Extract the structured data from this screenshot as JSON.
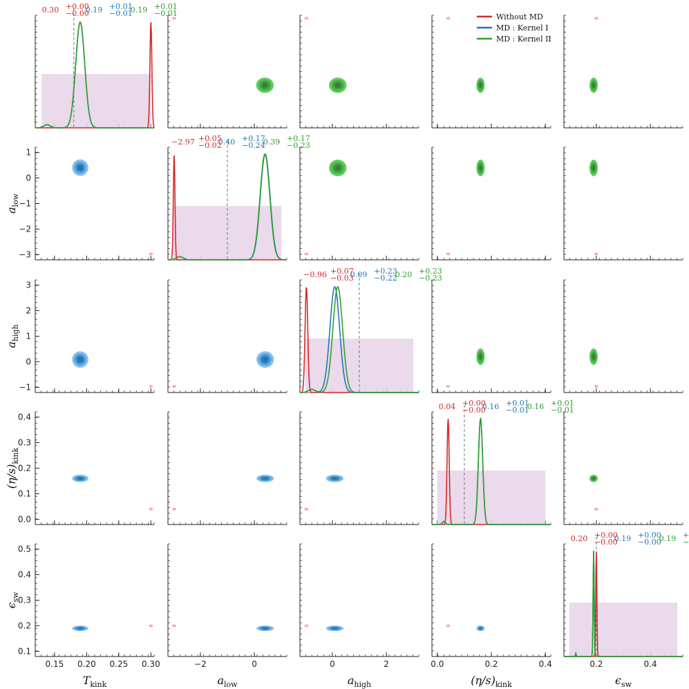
{
  "chart_data": {
    "type": "corner",
    "parameters": [
      {
        "key": "T_kink",
        "label_main": "T",
        "label_sub": "kink",
        "range": [
          0.12,
          0.305
        ],
        "ticks": [
          0.15,
          0.2,
          0.25,
          0.3
        ],
        "tick_labels": [
          "0.15",
          "0.20",
          "0.25",
          "0.30"
        ]
      },
      {
        "key": "a_low",
        "label_main": "a",
        "label_sub": "low",
        "range": [
          -3.2,
          1.2
        ],
        "ticks": [
          -2,
          0
        ],
        "tick_labels": [
          "−2",
          "0"
        ],
        "y_ticks": [
          1,
          0,
          -1,
          -2,
          -3
        ],
        "y_tick_labels": [
          "1",
          "0",
          "−1",
          "−2",
          "−3"
        ]
      },
      {
        "key": "a_high",
        "label_main": "a",
        "label_sub": "high",
        "range": [
          -1.2,
          3.2
        ],
        "ticks": [
          0,
          2
        ],
        "tick_labels": [
          "0",
          "2"
        ],
        "y_ticks": [
          3,
          2,
          1,
          0,
          -1
        ],
        "y_tick_labels": [
          "3",
          "2",
          "1",
          "0",
          "−1"
        ]
      },
      {
        "key": "eta_s_kink",
        "label_main": "(η/s)",
        "label_sub": "kink",
        "range": [
          -0.02,
          0.42
        ],
        "ticks": [
          0.0,
          0.2,
          0.4
        ],
        "tick_labels": [
          "0.0",
          "0.2",
          "0.4"
        ],
        "y_ticks": [
          0.4,
          0.3,
          0.2,
          0.1,
          0.0
        ],
        "y_tick_labels": [
          "0.4",
          "0.3",
          "0.2",
          "0.1",
          "0.0"
        ]
      },
      {
        "key": "eps_sw",
        "label_main": "ϵ",
        "label_sub": "sw",
        "range": [
          0.08,
          0.52
        ],
        "ticks": [
          0.2,
          0.4
        ],
        "tick_labels": [
          "0.2",
          "0.4"
        ],
        "y_ticks": [
          0.5,
          0.4,
          0.3,
          0.2,
          0.1
        ],
        "y_tick_labels": [
          "0.5",
          "0.4",
          "0.3",
          "0.2",
          "0.1"
        ]
      }
    ],
    "series": [
      {
        "name": "Without MD",
        "color": "#d62728",
        "means": [
          0.3,
          -2.97,
          -0.96,
          0.04,
          0.2
        ],
        "widths": [
          0.0015,
          0.03,
          0.05,
          0.004,
          0.002
        ]
      },
      {
        "name": "MD : Kernel I",
        "color": "#1f77b4",
        "means": [
          0.19,
          0.4,
          0.09,
          0.16,
          0.19
        ],
        "widths": [
          0.007,
          0.18,
          0.18,
          0.008,
          0.002
        ]
      },
      {
        "name": "MD : Kernel II",
        "color": "#2ca02c",
        "means": [
          0.19,
          0.39,
          0.2,
          0.16,
          0.19
        ],
        "widths": [
          0.007,
          0.18,
          0.18,
          0.008,
          0.002
        ]
      }
    ],
    "truth_values": [
      0.18,
      -1.0,
      1.0,
      0.1,
      0.2
    ],
    "prior_ranges": [
      [
        0.13,
        0.3
      ],
      [
        -3.0,
        1.0
      ],
      [
        -1.0,
        3.0
      ],
      [
        0.0,
        0.4
      ],
      [
        0.1,
        0.5
      ]
    ],
    "prior_color": "#e6d3e8",
    "diag_annotations": [
      [
        {
          "text": "0.30",
          "sup": "+0.00",
          "sub": "−0.00"
        },
        {
          "text": "0.19",
          "sup": "+0.01",
          "sub": "−0.01"
        },
        {
          "text": "0.19",
          "sup": "+0.01",
          "sub": "−0.01"
        }
      ],
      [
        {
          "text": "−2.97",
          "sup": "+0.05",
          "sub": "−0.02"
        },
        {
          "text": "0.40",
          "sup": "+0.17",
          "sub": "−0.24"
        },
        {
          "text": "0.39",
          "sup": "+0.17",
          "sub": "−0.23"
        }
      ],
      [
        {
          "text": "−0.96",
          "sup": "+0.07",
          "sub": "−0.03"
        },
        {
          "text": "0.09",
          "sup": "+0.23",
          "sub": "−0.22"
        },
        {
          "text": "0.20",
          "sup": "+0.23",
          "sub": "−0.23"
        }
      ],
      [
        {
          "text": "0.04",
          "sup": "+0.00",
          "sub": "−0.00"
        },
        {
          "text": "0.16",
          "sup": "+0.01",
          "sub": "−0.01"
        },
        {
          "text": "0.16",
          "sup": "+0.01",
          "sub": "−0.01"
        }
      ],
      [
        {
          "text": "0.20",
          "sup": "+0.00",
          "sub": "−0.00"
        },
        {
          "text": "0.19",
          "sup": "+0.00",
          "sub": "−0.00"
        },
        {
          "text": "0.19",
          "sup": "+0.00",
          "sub": "−0.00"
        }
      ]
    ],
    "legend": {
      "position": "top-right"
    },
    "lower_color": "#4a90d9",
    "upper_color": "#3cb94a"
  }
}
